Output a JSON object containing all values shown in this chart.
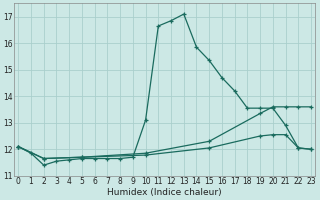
{
  "xlabel": "Humidex (Indice chaleur)",
  "bg_color": "#cce8e5",
  "grid_color": "#aacfcc",
  "line_color": "#1a6b5e",
  "line1_x": [
    0,
    1,
    2,
    3,
    4,
    5,
    6,
    7,
    8,
    9,
    10,
    11,
    12,
    13,
    14,
    15,
    16,
    17,
    18,
    19,
    20,
    21,
    22,
    23
  ],
  "line1_y": [
    12.1,
    11.85,
    11.4,
    11.55,
    11.6,
    11.65,
    11.65,
    11.65,
    11.65,
    11.7,
    13.1,
    16.65,
    16.85,
    17.1,
    15.85,
    15.35,
    14.7,
    14.2,
    13.55,
    13.55,
    13.55,
    12.9,
    12.05,
    12.0
  ],
  "line2_x": [
    0,
    2,
    5,
    10,
    15,
    19,
    20,
    21,
    22,
    23
  ],
  "line2_y": [
    12.1,
    11.65,
    11.7,
    11.85,
    12.3,
    13.35,
    13.6,
    13.6,
    13.6,
    13.6
  ],
  "line3_x": [
    0,
    2,
    5,
    10,
    15,
    19,
    20,
    21,
    22,
    23
  ],
  "line3_y": [
    12.1,
    11.65,
    11.7,
    11.78,
    12.05,
    12.5,
    12.55,
    12.55,
    12.05,
    12.0
  ],
  "ylim": [
    11.0,
    17.5
  ],
  "xlim": [
    -0.3,
    23.3
  ],
  "yticks": [
    11,
    12,
    13,
    14,
    15,
    16,
    17
  ],
  "xticks": [
    0,
    1,
    2,
    3,
    4,
    5,
    6,
    7,
    8,
    9,
    10,
    11,
    12,
    13,
    14,
    15,
    16,
    17,
    18,
    19,
    20,
    21,
    22,
    23
  ]
}
